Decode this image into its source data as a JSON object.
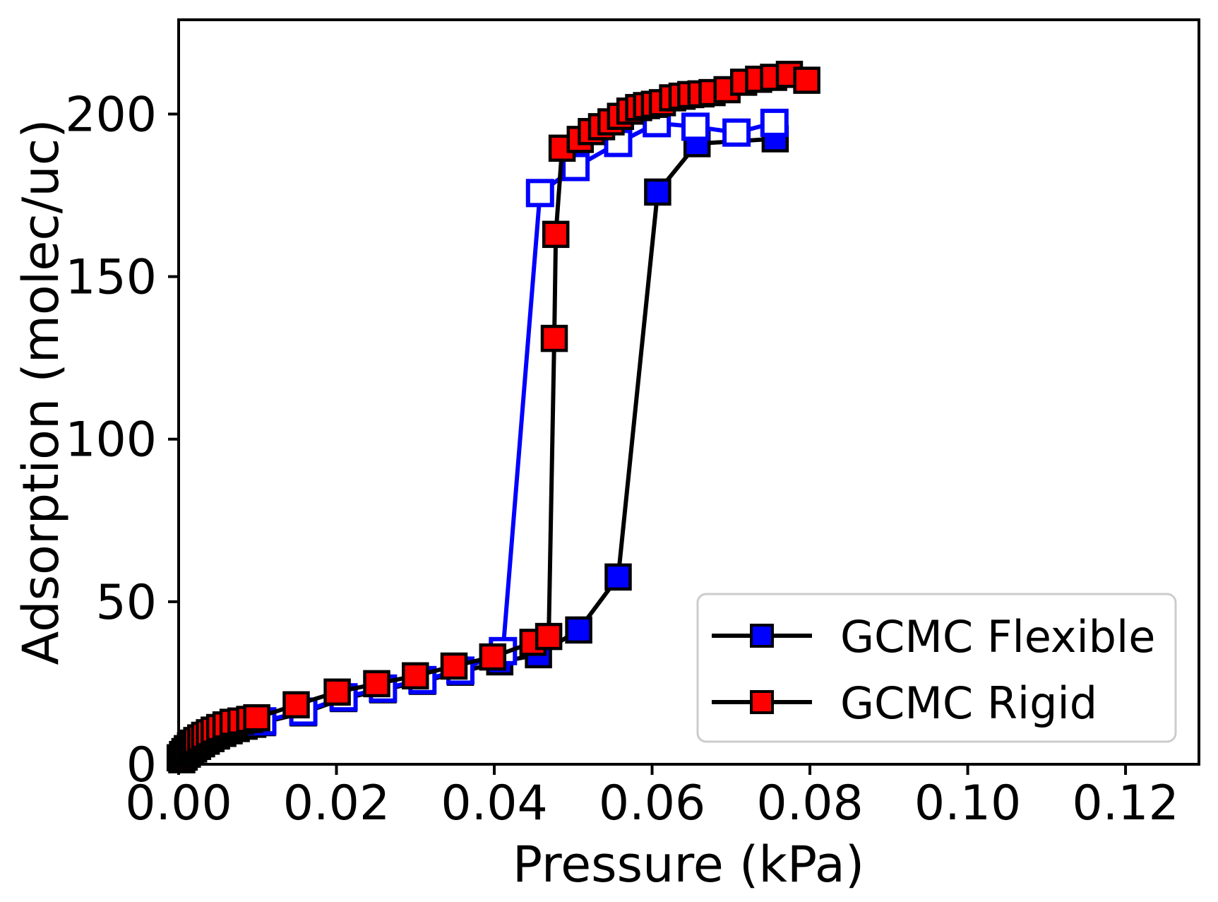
{
  "figure": {
    "background_color": "#ffffff",
    "xlabel": "Pressure (kPa)",
    "ylabel": "Adsorption (molec/uc)"
  },
  "legend": {
    "position": "lower right",
    "items": [
      {
        "label": "GCMC Flexible",
        "marker": "filled-square",
        "marker_color": "#0000ff",
        "line_color": "#000000"
      },
      {
        "label": "GCMC Rigid",
        "marker": "filled-square",
        "marker_color": "#ff0000",
        "line_color": "#000000"
      }
    ]
  },
  "chart_data": {
    "type": "line",
    "title": "",
    "xlabel": "Pressure (kPa)",
    "ylabel": "Adsorption (molec/uc)",
    "xlim": [
      0,
      0.1293
    ],
    "ylim": [
      0,
      229
    ],
    "grid": false,
    "legend_position": "lower right",
    "xticks": {
      "values": [
        0.0,
        0.02,
        0.04,
        0.06,
        0.08,
        0.1,
        0.12
      ],
      "labels": [
        "0.00",
        "0.02",
        "0.04",
        "0.06",
        "0.08",
        "0.10",
        "0.12"
      ]
    },
    "yticks": {
      "values": [
        0,
        50,
        100,
        150,
        200
      ],
      "labels": [
        "0",
        "50",
        "100",
        "150",
        "200"
      ]
    },
    "series": [
      {
        "id": "gcmc-flexible-adsorption",
        "name": "GCMC Flexible (adsorption branch)",
        "legend_label": "GCMC Flexible",
        "marker": "filled-square",
        "marker_color": "#0000ff",
        "line_color": "#000000",
        "x": [
          0.0004,
          0.0007,
          0.0011,
          0.0015,
          0.0019,
          0.0024,
          0.0029,
          0.0035,
          0.0041,
          0.0048,
          0.0056,
          0.0064,
          0.0073,
          0.0083,
          0.0094,
          0.0106,
          0.0158,
          0.0209,
          0.0259,
          0.0309,
          0.0357,
          0.0407,
          0.0456,
          0.0507,
          0.0557,
          0.0607,
          0.0657,
          0.0756
        ],
        "y": [
          1.4,
          2.2,
          3.1,
          3.9,
          4.7,
          5.5,
          6.3,
          7.1,
          7.9,
          8.7,
          9.5,
          10.3,
          11.0,
          11.7,
          12.3,
          12.8,
          15.8,
          20.2,
          22.9,
          25.5,
          28.3,
          31.5,
          33.7,
          41.3,
          57.6,
          176.0,
          190.9,
          192.4
        ]
      },
      {
        "id": "gcmc-flexible-desorption",
        "name": "GCMC Flexible (desorption branch, open markers)",
        "legend_label": "GCMC Flexible",
        "marker": "open-square",
        "marker_color": "#0000ff",
        "line_color": "#0000ff",
        "x": [
          0.0755,
          0.0707,
          0.0655,
          0.0606,
          0.0557,
          0.0503,
          0.0458,
          0.0411,
          0.0357,
          0.0309,
          0.0259,
          0.0209,
          0.0158,
          0.0106
        ],
        "y": [
          197.3,
          194.3,
          196.1,
          197.2,
          191.1,
          183.7,
          175.7,
          34.8,
          28.8,
          25.9,
          23.3,
          20.6,
          16.2,
          13.2
        ]
      },
      {
        "id": "gcmc-rigid-adsorption",
        "name": "GCMC Rigid",
        "legend_label": "GCMC Rigid",
        "marker": "filled-square",
        "marker_color": "#ff0000",
        "line_color": "#000000",
        "x": [
          0.0002,
          0.0005,
          0.0008,
          0.0011,
          0.0015,
          0.0019,
          0.0023,
          0.0028,
          0.0033,
          0.0039,
          0.0045,
          0.0052,
          0.006,
          0.0069,
          0.0079,
          0.009,
          0.0099,
          0.0149,
          0.0201,
          0.0251,
          0.03,
          0.0349,
          0.0398,
          0.0449,
          0.0469,
          0.0476,
          0.0478,
          0.0486,
          0.0509,
          0.0523,
          0.0536,
          0.0548,
          0.056,
          0.0572,
          0.0583,
          0.0593,
          0.0603,
          0.0613,
          0.0626,
          0.0638,
          0.0649,
          0.0662,
          0.0676,
          0.0695,
          0.0716,
          0.0735,
          0.0754,
          0.0774,
          0.0796
        ],
        "y": [
          2.0,
          3.0,
          3.9,
          4.8,
          5.7,
          6.5,
          7.3,
          8.1,
          8.9,
          9.7,
          10.5,
          11.3,
          12.1,
          12.9,
          13.3,
          13.8,
          14.3,
          18.3,
          22.2,
          24.8,
          27.2,
          30.2,
          33.0,
          37.5,
          39.3,
          131.0,
          163.0,
          189.5,
          192.2,
          194.6,
          196.1,
          197.6,
          199.3,
          200.9,
          202.0,
          202.6,
          203.0,
          203.5,
          205.0,
          205.5,
          206.0,
          206.2,
          206.6,
          207.5,
          209.8,
          210.7,
          211.3,
          212.2,
          210.4
        ]
      }
    ]
  }
}
